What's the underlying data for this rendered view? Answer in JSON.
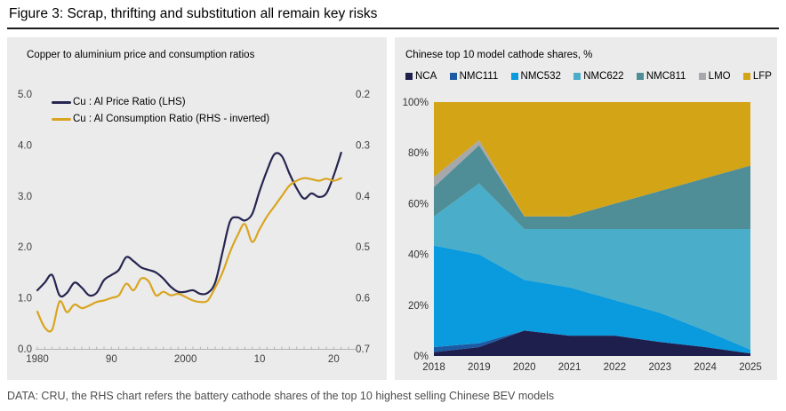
{
  "figure": {
    "title": "Figure 3: Scrap, thrifting and substitution all remain key risks"
  },
  "footer": {
    "text": "DATA: CRU, the RHS chart refers the battery cathode shares of the top 10 highest selling Chinese BEV models"
  },
  "colors": {
    "panel_background": "#ebebeb",
    "axis_line": "#b3b3b3",
    "axis_label": "#404040",
    "title_rule": "#1a1a1a",
    "price_ratio_line": "#262550",
    "consumption_ratio_line": "#d9a521"
  },
  "chart_data": [
    {
      "type": "line",
      "title": "Copper to aluminium price and consumption ratios",
      "x": [
        1980,
        1981,
        1982,
        1983,
        1984,
        1985,
        1986,
        1987,
        1988,
        1989,
        1990,
        1991,
        1992,
        1993,
        1994,
        1995,
        1996,
        1997,
        1998,
        1999,
        2000,
        2001,
        2002,
        2003,
        2004,
        2005,
        2006,
        2007,
        2008,
        2009,
        2010,
        2011,
        2012,
        2013,
        2014,
        2015,
        2016,
        2017,
        2018,
        2019,
        2020,
        2021
      ],
      "series": [
        {
          "name": "Cu : Al Price Ratio (LHS)",
          "axis": "LHS",
          "color": "#262550",
          "values": [
            1.15,
            1.3,
            1.45,
            1.05,
            1.1,
            1.3,
            1.2,
            1.05,
            1.1,
            1.35,
            1.45,
            1.55,
            1.8,
            1.72,
            1.6,
            1.55,
            1.5,
            1.38,
            1.22,
            1.12,
            1.12,
            1.15,
            1.08,
            1.1,
            1.3,
            1.9,
            2.5,
            2.58,
            2.52,
            2.65,
            3.1,
            3.5,
            3.82,
            3.78,
            3.45,
            3.15,
            2.95,
            3.05,
            2.98,
            3.05,
            3.4,
            3.85
          ]
        },
        {
          "name": "Cu : Al Consumption Ratio (RHS - inverted)",
          "axis": "RHS",
          "color": "#d9a521",
          "values": [
            0.627,
            0.658,
            0.662,
            0.607,
            0.628,
            0.613,
            0.62,
            0.615,
            0.608,
            0.605,
            0.6,
            0.595,
            0.572,
            0.585,
            0.562,
            0.567,
            0.595,
            0.588,
            0.595,
            0.592,
            0.598,
            0.605,
            0.608,
            0.605,
            0.58,
            0.55,
            0.51,
            0.478,
            0.455,
            0.49,
            0.465,
            0.44,
            0.42,
            0.4,
            0.38,
            0.37,
            0.365,
            0.367,
            0.37,
            0.366,
            0.37,
            0.365
          ]
        }
      ],
      "lhs_axis": {
        "range": [
          0,
          5
        ],
        "tick_labels_top_to_bottom": [
          "5.0",
          "4.0",
          "3.0",
          "2.0",
          "1.0",
          "0.0"
        ]
      },
      "rhs_axis": {
        "range": [
          0.2,
          0.7
        ],
        "inverted": true,
        "tick_labels_top_to_bottom": [
          "0.2",
          "0.3",
          "0.4",
          "0.5",
          "0.6",
          "0.7"
        ]
      },
      "x_axis": {
        "range": [
          1980,
          2022
        ],
        "minor_tick_every": 1,
        "ticks": [
          {
            "label": "1980",
            "year": 1980
          },
          {
            "label": "90",
            "year": 1990
          },
          {
            "label": "2000",
            "year": 2000
          },
          {
            "label": "10",
            "year": 2010
          },
          {
            "label": "20",
            "year": 2020
          }
        ]
      },
      "grid": false,
      "legend_position": "top-left-inside"
    },
    {
      "type": "area",
      "stacked": true,
      "title": "Chinese top 10 model cathode shares, %",
      "categories": [
        2018,
        2019,
        2020,
        2021,
        2022,
        2023,
        2024,
        2025
      ],
      "series": [
        {
          "name": "NCA",
          "color": "#1f1f4e",
          "values": [
            1.5,
            3.5,
            10,
            8,
            8,
            5.5,
            3.5,
            1
          ]
        },
        {
          "name": "NMC111",
          "color": "#1c5ba3",
          "values": [
            2,
            1.5,
            0,
            0,
            0,
            0,
            0,
            0
          ]
        },
        {
          "name": "NMC532",
          "color": "#0a9ade",
          "values": [
            40,
            35,
            20,
            19,
            14,
            11.5,
            6.5,
            1.5
          ]
        },
        {
          "name": "NMC622",
          "color": "#4aadc9",
          "values": [
            11.5,
            28,
            20,
            23,
            28,
            33,
            40,
            47.5
          ]
        },
        {
          "name": "NMC811",
          "color": "#4f8e96",
          "values": [
            11.5,
            15,
            5,
            5,
            10,
            15,
            20,
            25
          ]
        },
        {
          "name": "LMO",
          "color": "#a6a8ab",
          "values": [
            4,
            2,
            0,
            0,
            0,
            0,
            0,
            0
          ]
        },
        {
          "name": "LFP",
          "color": "#d4a417",
          "values": [
            29.5,
            15,
            45,
            45,
            40,
            35,
            30,
            25
          ]
        }
      ],
      "y_axis": {
        "range": [
          0,
          100
        ],
        "tick_labels_top_to_bottom": [
          "100%",
          "80%",
          "60%",
          "40%",
          "20%",
          "0%"
        ]
      },
      "grid": false,
      "legend_position": "top-row"
    }
  ]
}
